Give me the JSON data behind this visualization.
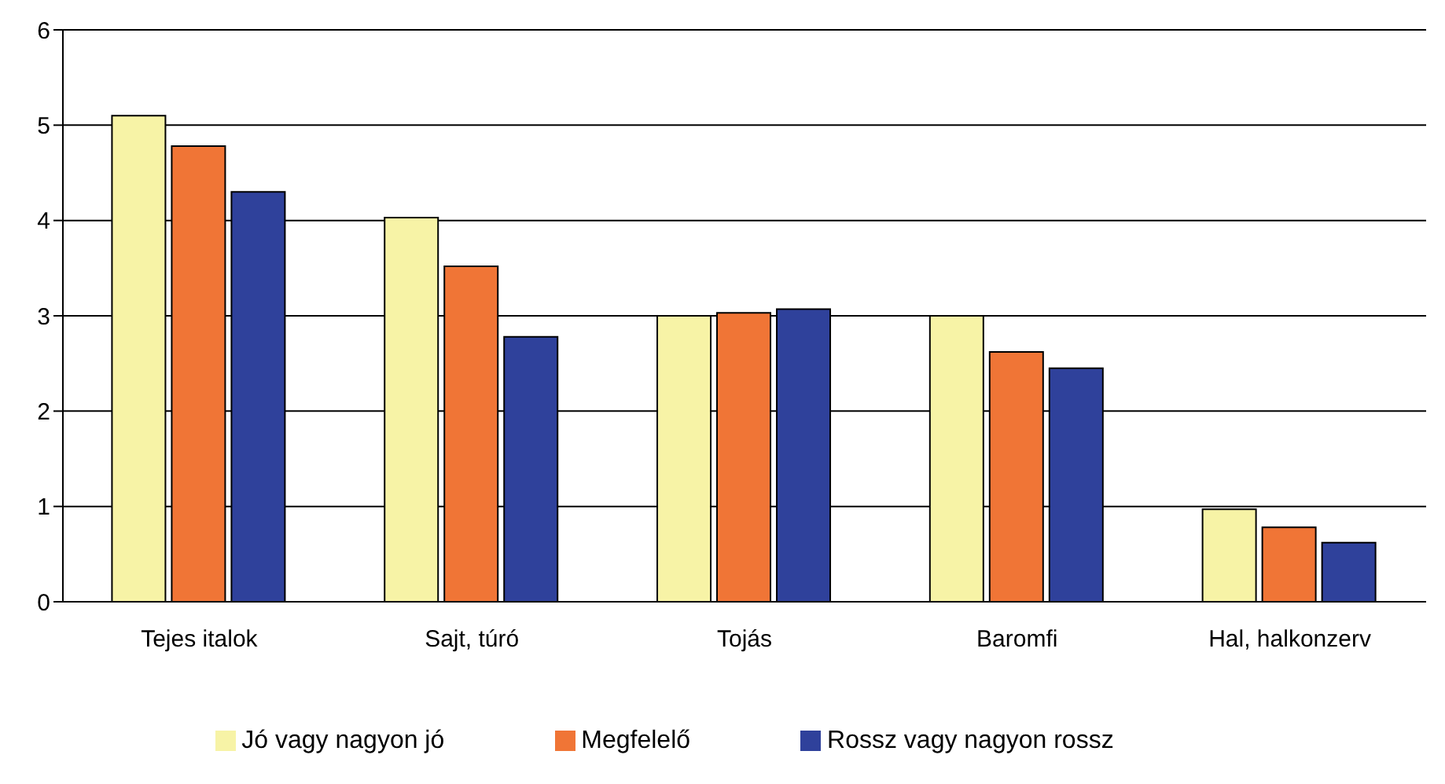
{
  "chart_data": {
    "type": "bar",
    "categories": [
      "Tejes italok",
      "Sajt, túró",
      "Tojás",
      "Baromfi",
      "Hal, halkonzerv"
    ],
    "series": [
      {
        "name": "Jó vagy nagyon jó",
        "color": "#f7f3a6",
        "values": [
          5.1,
          4.03,
          3.0,
          3.0,
          0.97
        ]
      },
      {
        "name": "Megfelelő",
        "color": "#f07536",
        "values": [
          4.78,
          3.52,
          3.03,
          2.62,
          0.78
        ]
      },
      {
        "name": "Rossz vagy nagyon rossz",
        "color": "#2f419b",
        "values": [
          4.3,
          2.78,
          3.07,
          2.45,
          0.62
        ]
      }
    ],
    "ylim": [
      0,
      6
    ],
    "yticks": [
      0,
      1,
      2,
      3,
      4,
      5,
      6
    ],
    "grid": "y",
    "legend": "bottom"
  }
}
